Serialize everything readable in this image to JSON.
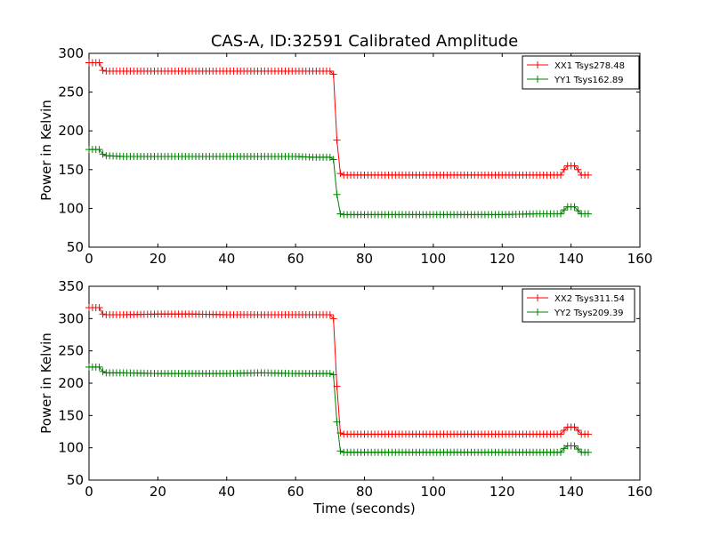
{
  "chart_data": [
    {
      "type": "line",
      "title": "CAS-A, ID:32591 Calibrated Amplitude",
      "xlabel": "",
      "ylabel": "Power in Kelvin",
      "xlim": [
        0,
        160
      ],
      "ylim": [
        50,
        300
      ],
      "xticks": [
        0,
        20,
        40,
        60,
        80,
        100,
        120,
        140,
        160
      ],
      "yticks": [
        50,
        100,
        150,
        200,
        250,
        300
      ],
      "grid": false,
      "legend": "top-right",
      "series": [
        {
          "name": "XX1 Tsys278.48",
          "color": "#ff0000",
          "marker": "+",
          "x": [
            0,
            1,
            2,
            3,
            4,
            5,
            10,
            20,
            30,
            40,
            50,
            60,
            65,
            70,
            71,
            72,
            73,
            74,
            80,
            90,
            100,
            110,
            120,
            130,
            135,
            137,
            138,
            139,
            140,
            141,
            142,
            143,
            144,
            145
          ],
          "y": [
            288,
            288,
            288,
            288,
            278,
            277,
            277,
            277,
            277,
            277,
            277,
            277,
            277,
            277,
            273,
            188,
            145,
            143,
            143,
            143,
            143,
            143,
            143,
            143,
            143,
            143,
            150,
            155,
            155,
            155,
            150,
            143,
            143,
            143
          ]
        },
        {
          "name": "YY1 Tsys162.89",
          "color": "#008000",
          "marker": "+",
          "x": [
            0,
            1,
            2,
            3,
            4,
            5,
            10,
            20,
            30,
            40,
            50,
            60,
            65,
            70,
            71,
            72,
            73,
            74,
            80,
            90,
            100,
            110,
            120,
            130,
            135,
            137,
            138,
            139,
            140,
            141,
            142,
            143,
            144,
            145
          ],
          "y": [
            176,
            176,
            176,
            176,
            170,
            168,
            167,
            167,
            167,
            167,
            167,
            167,
            166,
            166,
            163,
            118,
            93,
            92,
            92,
            92,
            92,
            92,
            92,
            93,
            93,
            93,
            98,
            102,
            102,
            102,
            97,
            93,
            93,
            93
          ]
        }
      ]
    },
    {
      "type": "line",
      "title": "",
      "xlabel": "Time (seconds)",
      "ylabel": "Power in Kelvin",
      "xlim": [
        0,
        160
      ],
      "ylim": [
        50,
        350
      ],
      "xticks": [
        0,
        20,
        40,
        60,
        80,
        100,
        120,
        140,
        160
      ],
      "yticks": [
        50,
        100,
        150,
        200,
        250,
        300,
        350
      ],
      "grid": false,
      "legend": "top-right",
      "series": [
        {
          "name": "XX2 Tsys311.54",
          "color": "#ff0000",
          "marker": "+",
          "x": [
            0,
            1,
            2,
            3,
            4,
            5,
            10,
            20,
            30,
            40,
            50,
            60,
            65,
            70,
            71,
            72,
            73,
            74,
            80,
            90,
            100,
            110,
            120,
            130,
            135,
            137,
            138,
            139,
            140,
            141,
            142,
            143,
            144,
            145
          ],
          "y": [
            317,
            317,
            317,
            317,
            307,
            306,
            306,
            307,
            307,
            306,
            306,
            306,
            306,
            306,
            300,
            195,
            123,
            121,
            121,
            121,
            121,
            121,
            121,
            121,
            121,
            121,
            127,
            132,
            132,
            132,
            127,
            121,
            121,
            121
          ]
        },
        {
          "name": "YY2 Tsys209.39",
          "color": "#008000",
          "marker": "+",
          "x": [
            0,
            1,
            2,
            3,
            4,
            5,
            10,
            20,
            30,
            40,
            50,
            60,
            65,
            70,
            71,
            72,
            73,
            74,
            80,
            90,
            100,
            110,
            120,
            130,
            135,
            137,
            138,
            139,
            140,
            141,
            142,
            143,
            144,
            145
          ],
          "y": [
            225,
            225,
            225,
            225,
            218,
            216,
            216,
            215,
            215,
            215,
            216,
            215,
            215,
            215,
            213,
            140,
            95,
            93,
            93,
            93,
            93,
            93,
            93,
            93,
            93,
            93,
            99,
            103,
            103,
            103,
            98,
            93,
            93,
            93
          ]
        }
      ]
    }
  ]
}
